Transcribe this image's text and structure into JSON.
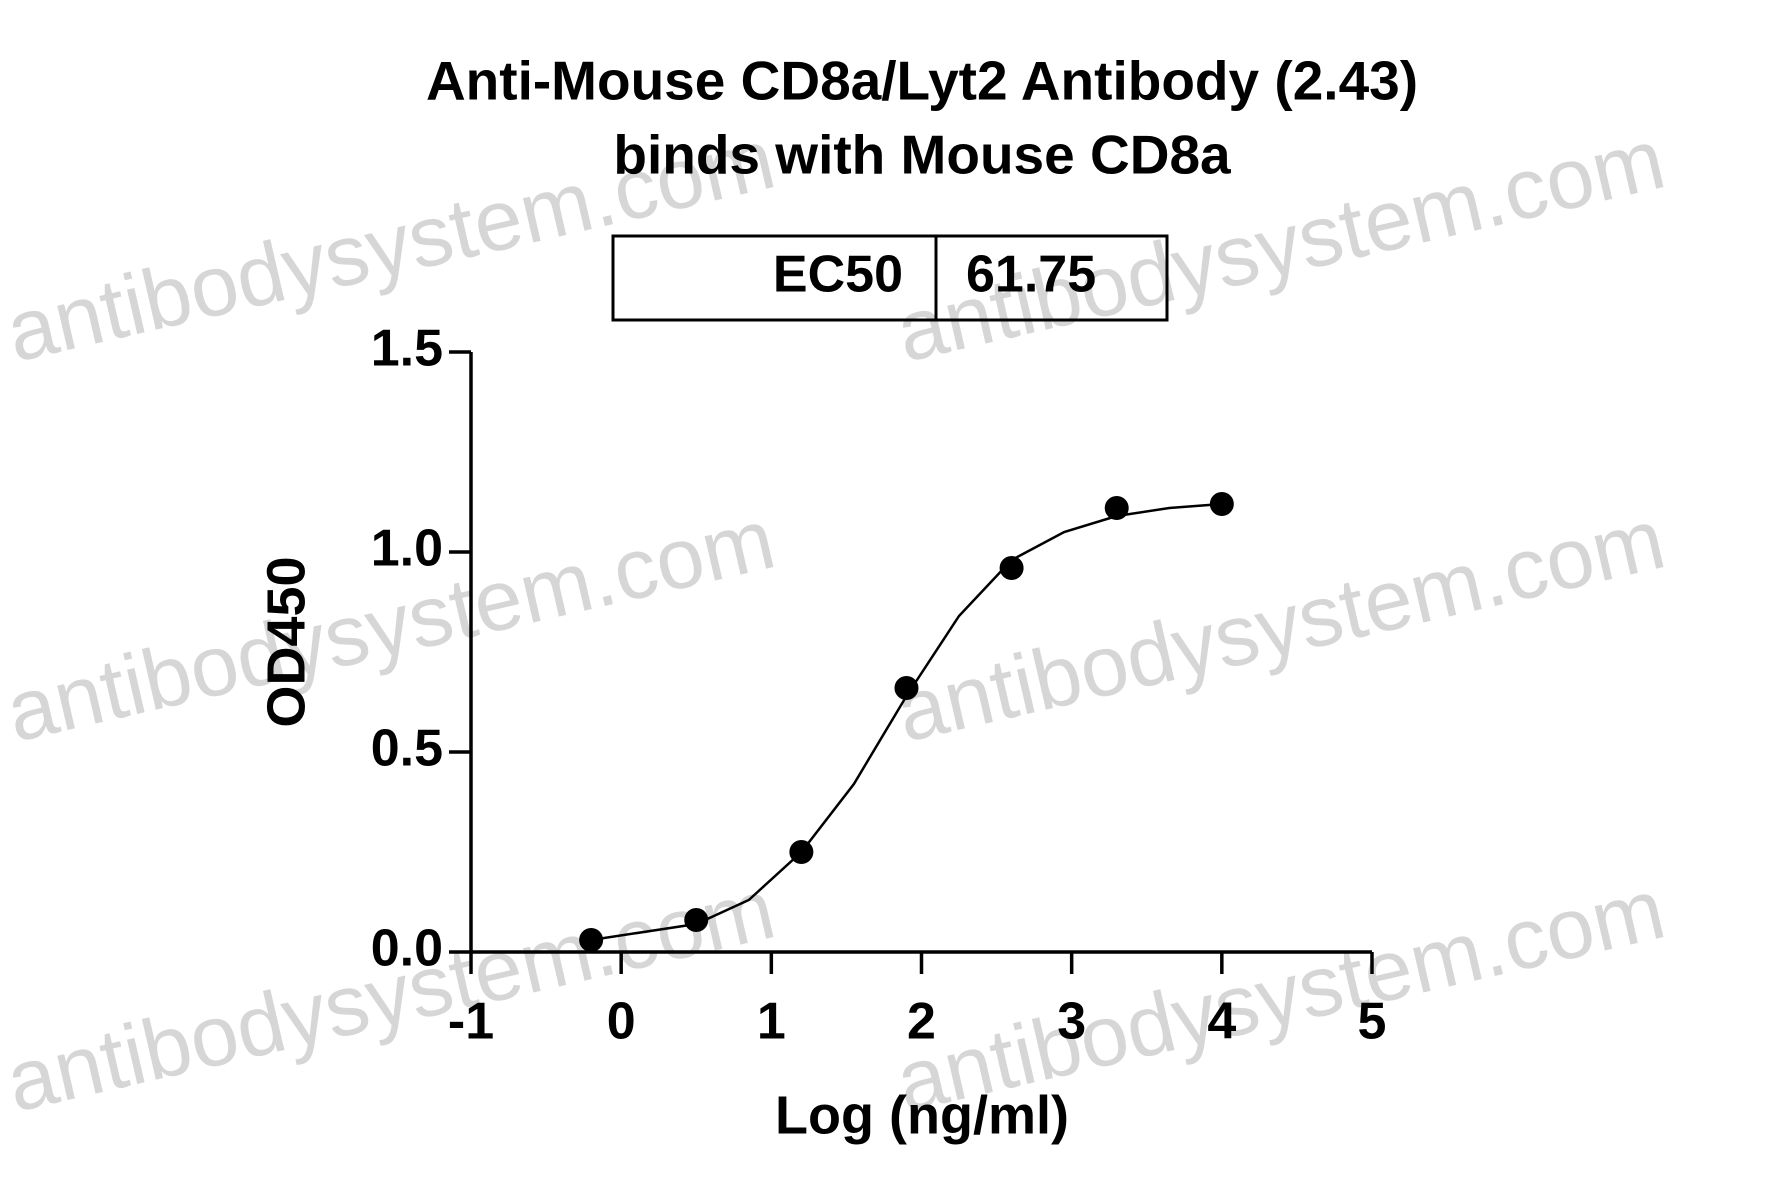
{
  "chart_data": {
    "type": "scatter",
    "title": [
      "Anti-Mouse CD8a/Lyt2 Antibody (2.43)",
      "binds with Mouse CD8a"
    ],
    "annotation": {
      "label": "EC50",
      "value": 61.75
    },
    "x_label": "Log (ng/ml)",
    "y_label": "OD450",
    "watermark": "antibodysystem.com",
    "xlim": [
      -1,
      5
    ],
    "xticks": [
      -1,
      0,
      1,
      2,
      3,
      4,
      5
    ],
    "ylim": [
      0,
      1.5
    ],
    "yticks": [
      {
        "value": 0,
        "label": "0.0"
      },
      0.5,
      {
        "value": 1,
        "label": "1.0"
      },
      1.5
    ],
    "series": [
      {
        "color": "#000000",
        "x": [
          -0.2,
          0.5,
          1.2,
          1.9,
          2.6,
          3.3,
          4.0
        ],
        "values": [
          0.03,
          0.08,
          0.25,
          0.66,
          0.96,
          1.11,
          1.12
        ]
      },
      {
        "color": "#000000",
        "line": true,
        "x": [
          -0.2,
          0.15,
          0.5,
          0.85,
          1.2,
          1.55,
          1.9,
          2.25,
          2.6,
          2.95,
          3.3,
          3.65,
          4.0
        ],
        "values": [
          0.03,
          0.05,
          0.07,
          0.13,
          0.25,
          0.42,
          0.64,
          0.84,
          0.98,
          1.05,
          1.09,
          1.11,
          1.12
        ]
      }
    ]
  }
}
